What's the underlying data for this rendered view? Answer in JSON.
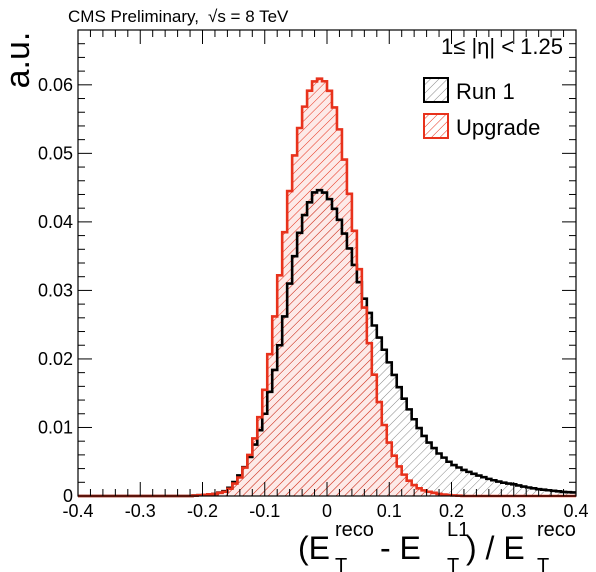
{
  "header": {
    "label": "CMS Preliminary,",
    "energy": "√s = 8 TeV"
  },
  "eta_range": "1≤ |η| < 1.25",
  "chart_data": {
    "type": "histogram",
    "title": "",
    "ylabel": "a.u.",
    "xlabel": {
      "lparen": "(E",
      "reco_num": "reco",
      "minus": " - E",
      "l1": "L1",
      "close": ") / E",
      "reco_den": "reco",
      "sub_t": "T"
    },
    "xlim": [
      -0.4,
      0.4
    ],
    "ylim": [
      0,
      0.068
    ],
    "x_ticks": [
      -0.4,
      -0.3,
      -0.2,
      -0.1,
      0,
      0.1,
      0.2,
      0.3,
      0.4
    ],
    "x_tick_labels": [
      "-0.4",
      "-0.3",
      "-0.2",
      "-0.1",
      "0",
      "0.1",
      "0.2",
      "0.3",
      "0.4"
    ],
    "y_ticks": [
      0,
      0.01,
      0.02,
      0.03,
      0.04,
      0.05,
      0.06
    ],
    "y_tick_labels": [
      "0",
      "0.01",
      "0.02",
      "0.03",
      "0.04",
      "0.05",
      "0.06"
    ],
    "bins": 100,
    "legend_position": "top-right",
    "series": [
      {
        "name": "Run 1",
        "color": "#000000",
        "points": [
          [
            -0.22,
            0.0
          ],
          [
            -0.18,
            0.0003
          ],
          [
            -0.16,
            0.0008
          ],
          [
            -0.15,
            0.0018
          ],
          [
            -0.14,
            0.003
          ],
          [
            -0.13,
            0.0045
          ],
          [
            -0.12,
            0.0065
          ],
          [
            -0.11,
            0.009
          ],
          [
            -0.1,
            0.012
          ],
          [
            -0.09,
            0.016
          ],
          [
            -0.08,
            0.02
          ],
          [
            -0.07,
            0.025
          ],
          [
            -0.06,
            0.031
          ],
          [
            -0.05,
            0.036
          ],
          [
            -0.04,
            0.04
          ],
          [
            -0.03,
            0.0425
          ],
          [
            -0.02,
            0.0443
          ],
          [
            -0.01,
            0.0447
          ],
          [
            0.0,
            0.044
          ],
          [
            0.01,
            0.0423
          ],
          [
            0.02,
            0.0403
          ],
          [
            0.03,
            0.0378
          ],
          [
            0.04,
            0.035
          ],
          [
            0.05,
            0.0318
          ],
          [
            0.06,
            0.0288
          ],
          [
            0.07,
            0.0262
          ],
          [
            0.08,
            0.024
          ],
          [
            0.09,
            0.0218
          ],
          [
            0.1,
            0.0195
          ],
          [
            0.11,
            0.0172
          ],
          [
            0.12,
            0.015
          ],
          [
            0.13,
            0.013
          ],
          [
            0.14,
            0.0112
          ],
          [
            0.15,
            0.0096
          ],
          [
            0.16,
            0.0082
          ],
          [
            0.18,
            0.0062
          ],
          [
            0.2,
            0.0047
          ],
          [
            0.22,
            0.0038
          ],
          [
            0.24,
            0.0031
          ],
          [
            0.26,
            0.0025
          ],
          [
            0.28,
            0.002
          ],
          [
            0.3,
            0.0017
          ],
          [
            0.32,
            0.0013
          ],
          [
            0.34,
            0.001
          ],
          [
            0.36,
            0.0008
          ],
          [
            0.38,
            0.0006
          ],
          [
            0.4,
            0.0005
          ]
        ]
      },
      {
        "name": "Upgrade",
        "color": "#e8321c",
        "points": [
          [
            -0.22,
            0.0
          ],
          [
            -0.18,
            0.0003
          ],
          [
            -0.16,
            0.0007
          ],
          [
            -0.15,
            0.0016
          ],
          [
            -0.14,
            0.0027
          ],
          [
            -0.13,
            0.0045
          ],
          [
            -0.12,
            0.007
          ],
          [
            -0.11,
            0.0105
          ],
          [
            -0.1,
            0.0155
          ],
          [
            -0.09,
            0.022
          ],
          [
            -0.08,
            0.029
          ],
          [
            -0.07,
            0.037
          ],
          [
            -0.06,
            0.0445
          ],
          [
            -0.05,
            0.051
          ],
          [
            -0.04,
            0.0555
          ],
          [
            -0.03,
            0.0588
          ],
          [
            -0.02,
            0.0605
          ],
          [
            -0.01,
            0.061
          ],
          [
            0.0,
            0.0602
          ],
          [
            0.01,
            0.0575
          ],
          [
            0.02,
            0.0535
          ],
          [
            0.03,
            0.048
          ],
          [
            0.04,
            0.0415
          ],
          [
            0.05,
            0.0345
          ],
          [
            0.06,
            0.0275
          ],
          [
            0.07,
            0.021
          ],
          [
            0.08,
            0.0155
          ],
          [
            0.09,
            0.011
          ],
          [
            0.1,
            0.0078
          ],
          [
            0.11,
            0.0054
          ],
          [
            0.12,
            0.0036
          ],
          [
            0.13,
            0.0024
          ],
          [
            0.14,
            0.0016
          ],
          [
            0.15,
            0.001
          ],
          [
            0.16,
            0.0007
          ],
          [
            0.18,
            0.0003
          ],
          [
            0.2,
            0.0001
          ],
          [
            0.22,
            0.0
          ],
          [
            0.4,
            0.0
          ]
        ]
      }
    ]
  }
}
